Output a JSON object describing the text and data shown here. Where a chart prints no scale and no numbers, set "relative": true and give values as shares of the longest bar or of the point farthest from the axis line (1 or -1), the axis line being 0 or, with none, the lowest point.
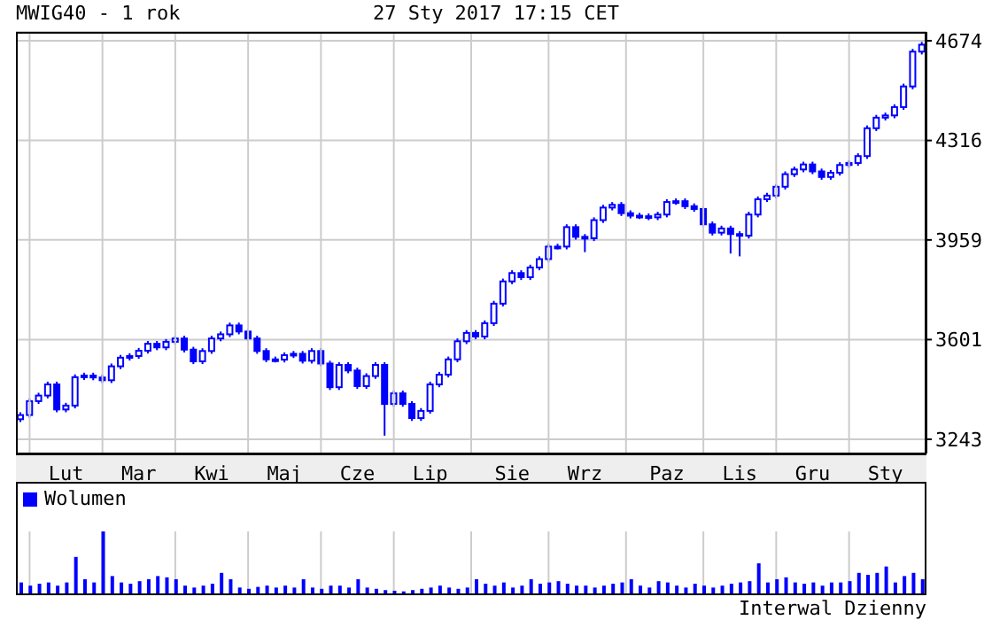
{
  "chart_data": [
    {
      "type": "candlestick",
      "title": "MWIG40 - 1 rok",
      "subtitle": "27 Sty 2017 17:15 CET",
      "color": "#0000ff",
      "grid": true,
      "ylim": [
        3192,
        4706
      ],
      "yticks": [
        3243,
        3601,
        3959,
        4316,
        4674
      ],
      "categories": [
        null,
        null,
        null,
        null,
        null,
        "Lut",
        null,
        null,
        null,
        null,
        null,
        null,
        null,
        "Mar",
        null,
        null,
        null,
        null,
        null,
        null,
        null,
        "Kwi",
        null,
        null,
        null,
        null,
        null,
        null,
        null,
        "Maj",
        null,
        null,
        null,
        null,
        null,
        null,
        null,
        "Cze",
        null,
        null,
        null,
        null,
        null,
        null,
        null,
        "Lip",
        null,
        null,
        null,
        null,
        null,
        null,
        null,
        null,
        "Sie",
        null,
        null,
        null,
        null,
        null,
        null,
        null,
        "Wrz",
        null,
        null,
        null,
        null,
        null,
        null,
        null,
        null,
        "Paz",
        null,
        null,
        null,
        null,
        null,
        null,
        null,
        "Lis",
        null,
        null,
        null,
        null,
        null,
        null,
        null,
        "Gru",
        null,
        null,
        null,
        null,
        null,
        null,
        null,
        "Sty",
        null,
        null,
        null,
        null
      ],
      "ohlc": [
        [
          3315,
          3340,
          3305,
          3330
        ],
        [
          3330,
          3390,
          3320,
          3380
        ],
        [
          3380,
          3410,
          3370,
          3400
        ],
        [
          3400,
          3450,
          3390,
          3440
        ],
        [
          3440,
          3450,
          3340,
          3350
        ],
        [
          3350,
          3374,
          3340,
          3364
        ],
        [
          3364,
          3476,
          3354,
          3466
        ],
        [
          3466,
          3482,
          3456,
          3472
        ],
        [
          3472,
          3482,
          3455,
          3465
        ],
        [
          3465,
          3475,
          3445,
          3455
        ],
        [
          3455,
          3515,
          3445,
          3505
        ],
        [
          3505,
          3546,
          3495,
          3536
        ],
        [
          3536,
          3552,
          3526,
          3542
        ],
        [
          3542,
          3571,
          3532,
          3561
        ],
        [
          3561,
          3596,
          3551,
          3586
        ],
        [
          3586,
          3596,
          3563,
          3573
        ],
        [
          3573,
          3603,
          3563,
          3593
        ],
        [
          3593,
          3615,
          3583,
          3605
        ],
        [
          3605,
          3615,
          3555,
          3565
        ],
        [
          3565,
          3575,
          3513,
          3523
        ],
        [
          3523,
          3570,
          3513,
          3560
        ],
        [
          3560,
          3615,
          3550,
          3605
        ],
        [
          3605,
          3630,
          3595,
          3620
        ],
        [
          3620,
          3662,
          3610,
          3652
        ],
        [
          3652,
          3662,
          3620,
          3630
        ],
        [
          3630,
          3640,
          3595,
          3605
        ],
        [
          3605,
          3615,
          3550,
          3560
        ],
        [
          3560,
          3570,
          3520,
          3530
        ],
        [
          3530,
          3540,
          3519,
          3529
        ],
        [
          3529,
          3555,
          3519,
          3545
        ],
        [
          3545,
          3560,
          3535,
          3550
        ],
        [
          3550,
          3560,
          3515,
          3525
        ],
        [
          3525,
          3570,
          3515,
          3560
        ],
        [
          3560,
          3570,
          3505,
          3515
        ],
        [
          3515,
          3525,
          3420,
          3430
        ],
        [
          3430,
          3520,
          3420,
          3510
        ],
        [
          3510,
          3520,
          3480,
          3490
        ],
        [
          3490,
          3500,
          3424,
          3434
        ],
        [
          3434,
          3480,
          3424,
          3470
        ],
        [
          3470,
          3520,
          3460,
          3510
        ],
        [
          3510,
          3520,
          3256,
          3370
        ],
        [
          3370,
          3418,
          3360,
          3408
        ],
        [
          3408,
          3418,
          3360,
          3370
        ],
        [
          3370,
          3380,
          3309,
          3319
        ],
        [
          3319,
          3355,
          3309,
          3345
        ],
        [
          3345,
          3450,
          3335,
          3440
        ],
        [
          3440,
          3485,
          3430,
          3475
        ],
        [
          3475,
          3540,
          3465,
          3530
        ],
        [
          3530,
          3605,
          3520,
          3595
        ],
        [
          3595,
          3635,
          3585,
          3625
        ],
        [
          3625,
          3635,
          3602,
          3612
        ],
        [
          3612,
          3670,
          3602,
          3660
        ],
        [
          3660,
          3740,
          3650,
          3730
        ],
        [
          3730,
          3820,
          3720,
          3810
        ],
        [
          3810,
          3850,
          3800,
          3840
        ],
        [
          3840,
          3850,
          3815,
          3825
        ],
        [
          3825,
          3870,
          3815,
          3860
        ],
        [
          3860,
          3900,
          3850,
          3890
        ],
        [
          3890,
          3945,
          3880,
          3935
        ],
        [
          3935,
          3945,
          3925,
          3935
        ],
        [
          3935,
          4015,
          3925,
          4005
        ],
        [
          4005,
          4015,
          3960,
          3970
        ],
        [
          3970,
          3980,
          3915,
          3965
        ],
        [
          3965,
          4040,
          3955,
          4030
        ],
        [
          4030,
          4085,
          4020,
          4075
        ],
        [
          4075,
          4095,
          4065,
          4085
        ],
        [
          4085,
          4095,
          4045,
          4055
        ],
        [
          4055,
          4065,
          4036,
          4046
        ],
        [
          4046,
          4056,
          4034,
          4044
        ],
        [
          4044,
          4054,
          4030,
          4040
        ],
        [
          4040,
          4060,
          4030,
          4050
        ],
        [
          4050,
          4105,
          4040,
          4095
        ],
        [
          4095,
          4108,
          4085,
          4098
        ],
        [
          4098,
          4108,
          4070,
          4080
        ],
        [
          4080,
          4090,
          4060,
          4070
        ],
        [
          4070,
          4080,
          4005,
          4015
        ],
        [
          4015,
          4025,
          3975,
          3985
        ],
        [
          3985,
          4010,
          3975,
          4000
        ],
        [
          4000,
          4010,
          3910,
          3980
        ],
        [
          3980,
          3990,
          3900,
          3974
        ],
        [
          3974,
          4060,
          3964,
          4050
        ],
        [
          4050,
          4115,
          4040,
          4105
        ],
        [
          4105,
          4128,
          4095,
          4118
        ],
        [
          4118,
          4160,
          4108,
          4150
        ],
        [
          4150,
          4205,
          4140,
          4195
        ],
        [
          4195,
          4222,
          4185,
          4212
        ],
        [
          4212,
          4240,
          4202,
          4230
        ],
        [
          4230,
          4240,
          4195,
          4205
        ],
        [
          4205,
          4215,
          4175,
          4185
        ],
        [
          4185,
          4210,
          4175,
          4200
        ],
        [
          4200,
          4238,
          4190,
          4228
        ],
        [
          4228,
          4245,
          4218,
          4235
        ],
        [
          4235,
          4270,
          4225,
          4260
        ],
        [
          4260,
          4370,
          4250,
          4360
        ],
        [
          4360,
          4408,
          4350,
          4398
        ],
        [
          4398,
          4416,
          4388,
          4406
        ],
        [
          4406,
          4446,
          4396,
          4436
        ],
        [
          4436,
          4520,
          4426,
          4510
        ],
        [
          4510,
          4645,
          4500,
          4635
        ],
        [
          4635,
          4670,
          4625,
          4660
        ]
      ]
    },
    {
      "type": "bar",
      "relative": true,
      "grid": "x",
      "legend": "top left",
      "annotations": [
        "Interwal Dzienny"
      ],
      "categories": [
        null,
        null,
        null,
        null,
        null,
        null,
        null,
        null,
        null,
        null,
        null,
        null,
        null,
        null,
        null,
        null,
        null,
        null,
        null,
        null,
        null,
        null,
        null,
        null,
        null,
        null,
        null,
        null,
        null,
        null,
        null,
        null,
        null,
        null,
        null,
        null,
        null,
        null,
        null,
        null,
        null,
        null,
        null,
        null,
        null,
        null,
        null,
        null,
        null,
        null,
        null,
        null,
        null,
        null,
        null,
        null,
        null,
        null,
        null,
        null,
        null,
        null,
        null,
        null,
        null,
        null,
        null,
        null,
        null,
        null,
        null,
        null,
        null,
        null,
        null,
        null,
        null,
        null,
        null,
        null,
        null,
        null,
        null,
        null,
        null,
        null,
        null,
        null,
        null,
        null,
        null,
        null,
        null,
        null,
        null,
        null,
        null,
        null,
        null,
        null
      ],
      "series": [
        {
          "name": "Wolumen",
          "color": "#0000ff",
          "values": [
            0.2,
            0.15,
            0.18,
            0.2,
            0.15,
            0.2,
            0.6,
            0.25,
            0.2,
            1.0,
            0.3,
            0.2,
            0.18,
            0.22,
            0.25,
            0.3,
            0.28,
            0.25,
            0.15,
            0.12,
            0.15,
            0.18,
            0.35,
            0.25,
            0.12,
            0.1,
            0.13,
            0.15,
            0.12,
            0.15,
            0.12,
            0.25,
            0.12,
            0.1,
            0.15,
            0.15,
            0.12,
            0.25,
            0.12,
            0.1,
            0.08,
            0.07,
            0.06,
            0.08,
            0.1,
            0.12,
            0.15,
            0.12,
            0.1,
            0.12,
            0.25,
            0.18,
            0.15,
            0.2,
            0.12,
            0.15,
            0.25,
            0.18,
            0.2,
            0.22,
            0.18,
            0.15,
            0.15,
            0.12,
            0.15,
            0.18,
            0.2,
            0.25,
            0.15,
            0.12,
            0.22,
            0.2,
            0.15,
            0.12,
            0.18,
            0.15,
            0.12,
            0.15,
            0.18,
            0.2,
            0.22,
            0.5,
            0.2,
            0.25,
            0.28,
            0.2,
            0.18,
            0.2,
            0.15,
            0.2,
            0.2,
            0.22,
            0.35,
            0.32,
            0.35,
            0.45,
            0.2,
            0.3,
            0.35,
            0.25
          ]
        }
      ]
    }
  ]
}
